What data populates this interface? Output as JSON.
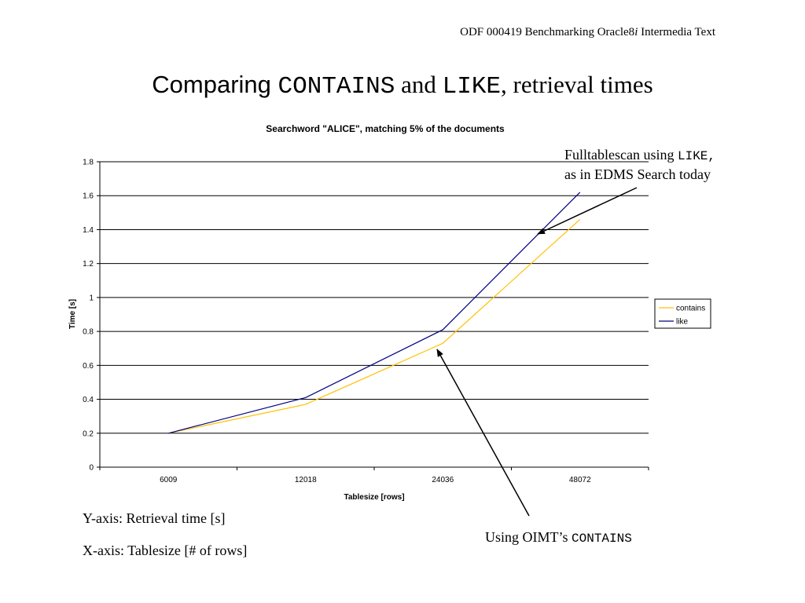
{
  "header": {
    "prefix": "ODF 000419 Benchmarking Oracle8",
    "italic": "i",
    "suffix": " Intermedia Text"
  },
  "title": {
    "part1": "Comparing ",
    "part2": "CONTAINS",
    "part3": " and ",
    "part4": "LIKE",
    "part5": ",  retrieval times"
  },
  "annotations": {
    "like_line1_prefix": "Fulltablescan using ",
    "like_line1_code": "LIKE,",
    "like_line2": "as in EDMS Search today",
    "contains_prefix": "Using OIMT’s ",
    "contains_code": "CONTAINS"
  },
  "axis_notes": {
    "y": "Y-axis: Retrieval time [s]",
    "x": "X-axis: Tablesize [# of rows]"
  },
  "colors": {
    "contains": "#ffc000",
    "like": "#000080",
    "grid": "#000000"
  },
  "chart_data": {
    "type": "line",
    "title": "Searchword \"ALICE\", matching 5% of the documents",
    "xlabel": "Tablesize [rows]",
    "ylabel": "Time [s]",
    "categories": [
      "6009",
      "12018",
      "24036",
      "48072"
    ],
    "ylim": [
      0,
      1.8
    ],
    "yticks": [
      "0",
      "0.2",
      "0.4",
      "0.6",
      "0.8",
      "1",
      "1.2",
      "1.4",
      "1.6",
      "1.8"
    ],
    "grid": true,
    "legend": "right",
    "series": [
      {
        "name": "contains",
        "values": [
          0.2,
          0.37,
          0.73,
          1.46
        ]
      },
      {
        "name": "like",
        "values": [
          0.2,
          0.41,
          0.81,
          1.62
        ]
      }
    ]
  }
}
